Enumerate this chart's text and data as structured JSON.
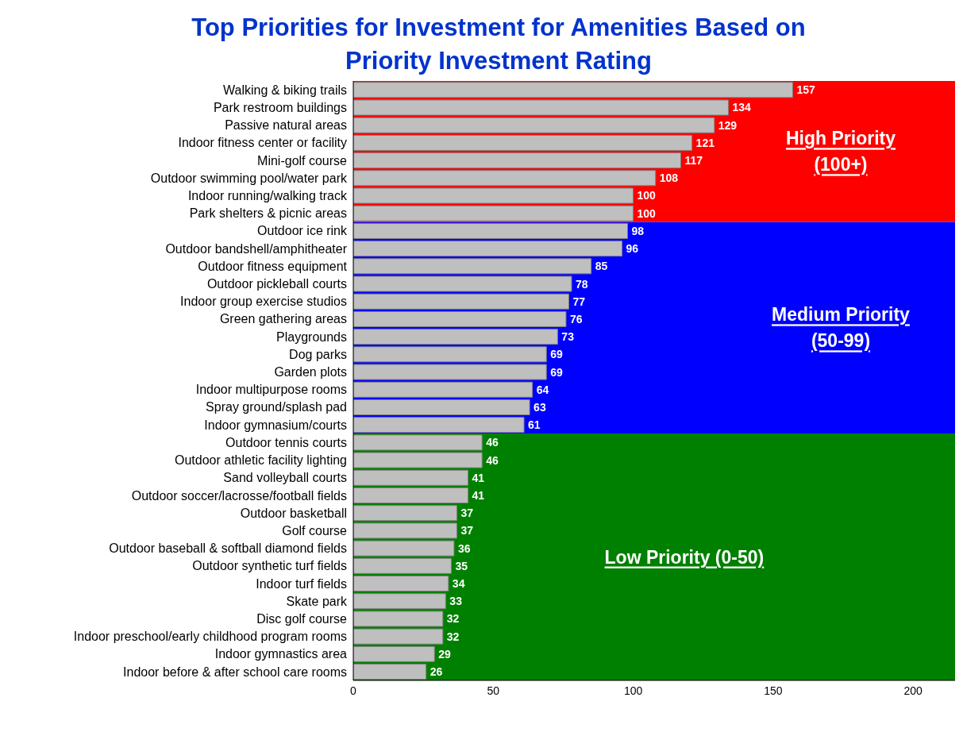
{
  "chart_data": {
    "type": "bar",
    "orientation": "horizontal",
    "title": "Top Priorities for Investment for Amenities Based on Priority Investment Rating",
    "categories": [
      "Walking & biking trails",
      "Park restroom buildings",
      "Passive natural areas",
      "Indoor fitness center or facility",
      "Mini-golf course",
      "Outdoor swimming pool/water park",
      "Indoor running/walking track",
      "Park shelters & picnic areas",
      "Outdoor ice rink",
      "Outdoor bandshell/amphitheater",
      "Outdoor fitness equipment",
      "Outdoor pickleball courts",
      "Indoor group exercise studios",
      "Green gathering areas",
      "Playgrounds",
      "Dog parks",
      "Garden plots",
      "Indoor multipurpose rooms",
      "Spray ground/splash pad",
      "Indoor gymnasium/courts",
      "Outdoor tennis courts",
      "Outdoor athletic facility lighting",
      "Sand volleyball courts",
      "Outdoor soccer/lacrosse/football fields",
      "Outdoor basketball",
      "Golf course",
      "Outdoor baseball & softball diamond fields",
      "Outdoor synthetic turf fields",
      "Indoor turf fields",
      "Skate park",
      "Disc golf course",
      "Indoor preschool/early childhood program rooms",
      "Indoor gymnastics area",
      "Indoor before & after school care rooms"
    ],
    "values": [
      157,
      134,
      129,
      121,
      117,
      108,
      100,
      100,
      98,
      96,
      85,
      78,
      77,
      76,
      73,
      69,
      69,
      64,
      63,
      61,
      46,
      46,
      41,
      41,
      37,
      37,
      36,
      35,
      34,
      33,
      32,
      32,
      29,
      26
    ],
    "color": "#bfbfbf",
    "data_labels": true,
    "xlim": [
      0,
      215
    ],
    "xticks": [
      0,
      50,
      100,
      150,
      200
    ],
    "bands": [
      {
        "axis": "y",
        "from": "Walking & biking trails",
        "to": "Park shelters & picnic areas",
        "label": "High Priority (100+)",
        "color": "#ff0000"
      },
      {
        "axis": "y",
        "from": "Outdoor ice rink",
        "to": "Indoor gymnasium/courts",
        "label": "Medium Priority (50-99)",
        "color": "#0000ff"
      },
      {
        "axis": "y",
        "from": "Outdoor tennis courts",
        "to": "Indoor before & after school care rooms",
        "label": "Low Priority (0-50)",
        "color": "#008000"
      }
    ],
    "grid": false,
    "legend": false
  }
}
